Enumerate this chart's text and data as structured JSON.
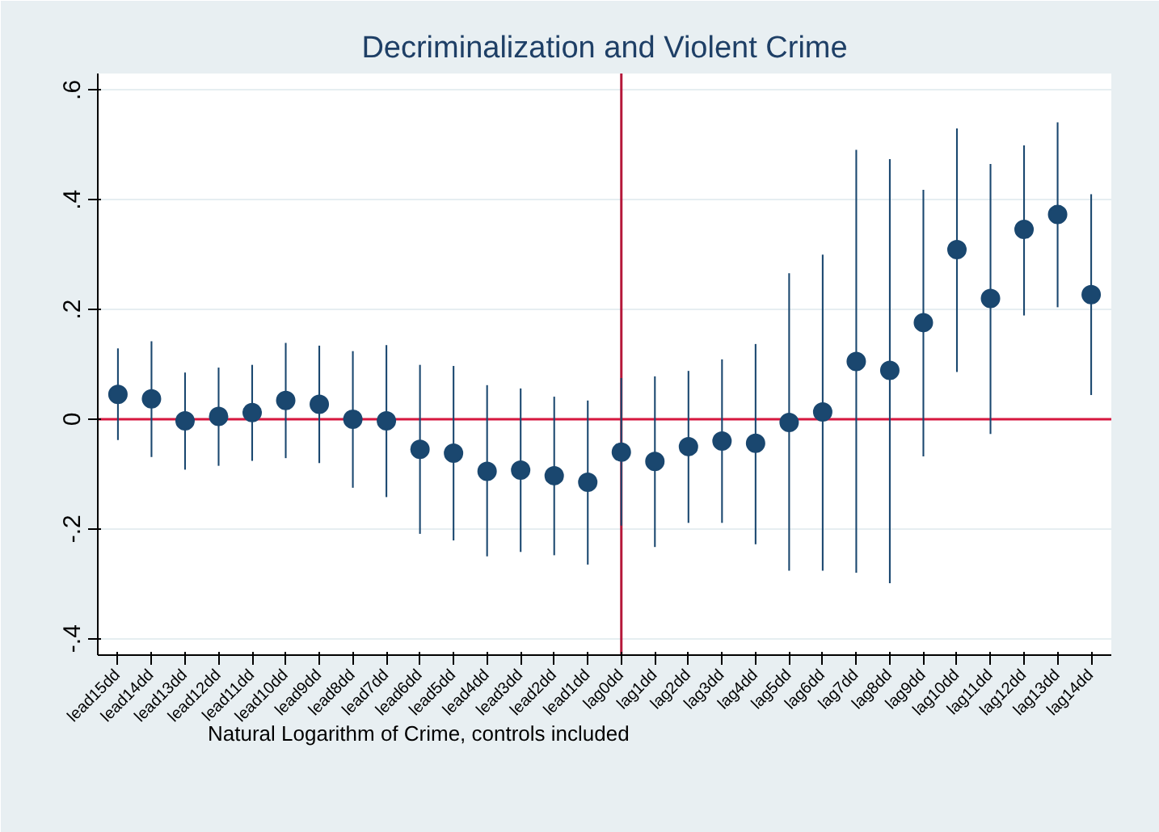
{
  "chart_data": {
    "type": "scatter",
    "title": "Decriminalization and Violent Crime",
    "categories": [
      "lead15dd",
      "lead14dd",
      "lead13dd",
      "lead12dd",
      "lead11dd",
      "lead10dd",
      "lead9dd",
      "lead8dd",
      "lead7dd",
      "lead6dd",
      "lead5dd",
      "lead4dd",
      "lead3dd",
      "lead2dd",
      "lead1dd",
      "lag0dd",
      "lag1dd",
      "lag2dd",
      "lag3dd",
      "lag4dd",
      "lag5dd",
      "lag6dd",
      "lag7dd",
      "lag8dd",
      "lag9dd",
      "lag10dd",
      "lag11dd",
      "lag12dd",
      "lag13dd",
      "lag14dd"
    ],
    "series": [
      {
        "color": "#1a476f",
        "values": [
          0.045,
          0.037,
          -0.003,
          0.005,
          0.012,
          0.034,
          0.027,
          0.0,
          -0.003,
          -0.055,
          -0.062,
          -0.095,
          -0.093,
          -0.103,
          -0.115,
          -0.06,
          -0.077,
          -0.05,
          -0.04,
          -0.044,
          -0.006,
          0.013,
          0.105,
          0.089,
          0.176,
          0.309,
          0.22,
          0.346,
          0.373,
          0.227
        ],
        "errors": [
          [
            -0.038,
            0.129
          ],
          [
            -0.069,
            0.142
          ],
          [
            -0.092,
            0.085
          ],
          [
            -0.085,
            0.094
          ],
          [
            -0.076,
            0.099
          ],
          [
            -0.071,
            0.139
          ],
          [
            -0.08,
            0.134
          ],
          [
            -0.125,
            0.124
          ],
          [
            -0.142,
            0.135
          ],
          [
            -0.209,
            0.099
          ],
          [
            -0.221,
            0.097
          ],
          [
            -0.25,
            0.062
          ],
          [
            -0.242,
            0.056
          ],
          [
            -0.248,
            0.041
          ],
          [
            -0.265,
            0.034
          ],
          [
            -0.194,
            0.075
          ],
          [
            -0.233,
            0.078
          ],
          [
            -0.189,
            0.088
          ],
          [
            -0.189,
            0.109
          ],
          [
            -0.228,
            0.137
          ],
          [
            -0.276,
            0.266
          ],
          [
            -0.276,
            0.3
          ],
          [
            -0.28,
            0.491
          ],
          [
            -0.299,
            0.474
          ],
          [
            -0.068,
            0.418
          ],
          [
            0.086,
            0.53
          ],
          [
            -0.027,
            0.465
          ],
          [
            0.189,
            0.499
          ],
          [
            0.204,
            0.541
          ],
          [
            0.044,
            0.41
          ]
        ]
      }
    ],
    "ylim": [
      -0.43,
      0.63
    ],
    "yticks": [
      {
        "value": -0.4,
        "label": "-.4"
      },
      {
        "value": -0.2,
        "label": "-.2"
      },
      {
        "value": 0,
        "label": "0"
      },
      {
        "value": 0.2,
        "label": ".2"
      },
      {
        "value": 0.4,
        "label": ".4"
      },
      {
        "value": 0.6,
        "label": ".6"
      }
    ],
    "grid": "y",
    "marker": "circle",
    "ref_lines": [
      {
        "axis": "y",
        "value": 0,
        "color": "#d6173f"
      },
      {
        "axis": "x",
        "value": "lag0dd",
        "color": "#b5173a"
      }
    ],
    "annotations": [
      "Natural Logarithm of Crime, controls included"
    ]
  }
}
